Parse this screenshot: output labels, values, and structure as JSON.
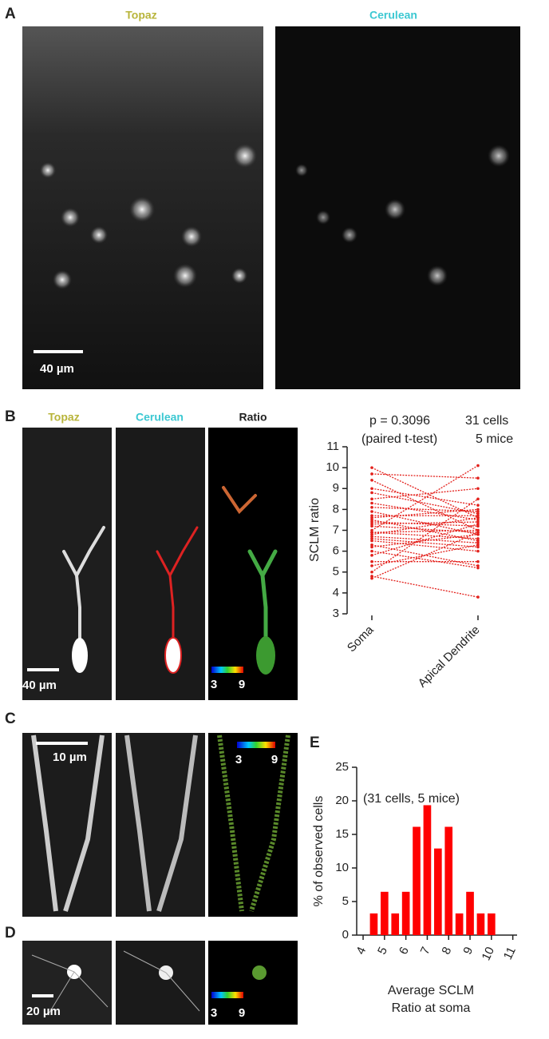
{
  "panels": {
    "A": {
      "label": "A",
      "channels": [
        "Topaz",
        "Cerulean"
      ],
      "scale_bar": "40 µm"
    },
    "B": {
      "label": "B",
      "channels": [
        "Topaz",
        "Cerulean",
        "Ratio"
      ],
      "scale_bar": "40 µm",
      "colorbar": [
        "3",
        "9"
      ]
    },
    "C": {
      "label": "C",
      "scale_bar": "10 µm",
      "colorbar": [
        "3",
        "9"
      ]
    },
    "D": {
      "label": "D",
      "scale_bar": "20 µm",
      "colorbar": [
        "3",
        "9"
      ]
    },
    "E": {
      "label": "E"
    }
  },
  "chart_data": [
    {
      "type": "paired",
      "categories": [
        "Soma",
        "Apical Dendrite"
      ],
      "ylabel": "SCLM ratio",
      "annotations": [
        "p = 0.3096",
        "31 cells",
        "(paired t-test)",
        "5 mice"
      ],
      "values": [
        [
          10.0,
          7.6
        ],
        [
          9.7,
          9.5
        ],
        [
          9.4,
          7.0
        ],
        [
          9.0,
          8.2
        ],
        [
          8.8,
          7.8
        ],
        [
          8.5,
          9.0
        ],
        [
          8.3,
          7.5
        ],
        [
          8.1,
          7.9
        ],
        [
          7.9,
          6.8
        ],
        [
          7.7,
          7.7
        ],
        [
          7.6,
          8.0
        ],
        [
          7.5,
          6.5
        ],
        [
          7.4,
          7.2
        ],
        [
          7.3,
          7.4
        ],
        [
          7.2,
          6.9
        ],
        [
          7.0,
          10.1
        ],
        [
          6.9,
          6.6
        ],
        [
          6.9,
          7.0
        ],
        [
          6.8,
          7.6
        ],
        [
          6.7,
          6.4
        ],
        [
          6.6,
          6.2
        ],
        [
          6.5,
          6.0
        ],
        [
          6.3,
          5.3
        ],
        [
          6.2,
          6.8
        ],
        [
          6.0,
          5.2
        ],
        [
          5.8,
          7.3
        ],
        [
          5.5,
          5.5
        ],
        [
          5.3,
          6.3
        ],
        [
          5.0,
          8.5
        ],
        [
          4.8,
          3.8
        ],
        [
          4.7,
          6.9
        ]
      ],
      "color": "#e3201b",
      "ylim": [
        3,
        11
      ],
      "yticks": [
        3,
        4,
        5,
        6,
        7,
        8,
        9,
        10,
        11
      ]
    },
    {
      "type": "bar",
      "ylabel": "% of observed cells",
      "xlabel": [
        "Average SCLM",
        "Ratio at soma"
      ],
      "annotation": "(31 cells, 5 mice)",
      "x": [
        4.5,
        5,
        5.5,
        6,
        6.5,
        7,
        7.5,
        8,
        8.5,
        9,
        9.5,
        10
      ],
      "values": [
        3.23,
        6.45,
        3.23,
        6.45,
        16.13,
        19.35,
        12.9,
        16.13,
        3.23,
        6.45,
        3.23,
        3.23
      ],
      "color": "#ff0000",
      "xlim": [
        3.7,
        11.2
      ],
      "ylim": [
        0,
        25
      ],
      "xticks": [
        4,
        5,
        6,
        7,
        8,
        9,
        10,
        11
      ],
      "yticks": [
        0,
        5,
        10,
        15,
        20,
        25
      ]
    }
  ]
}
